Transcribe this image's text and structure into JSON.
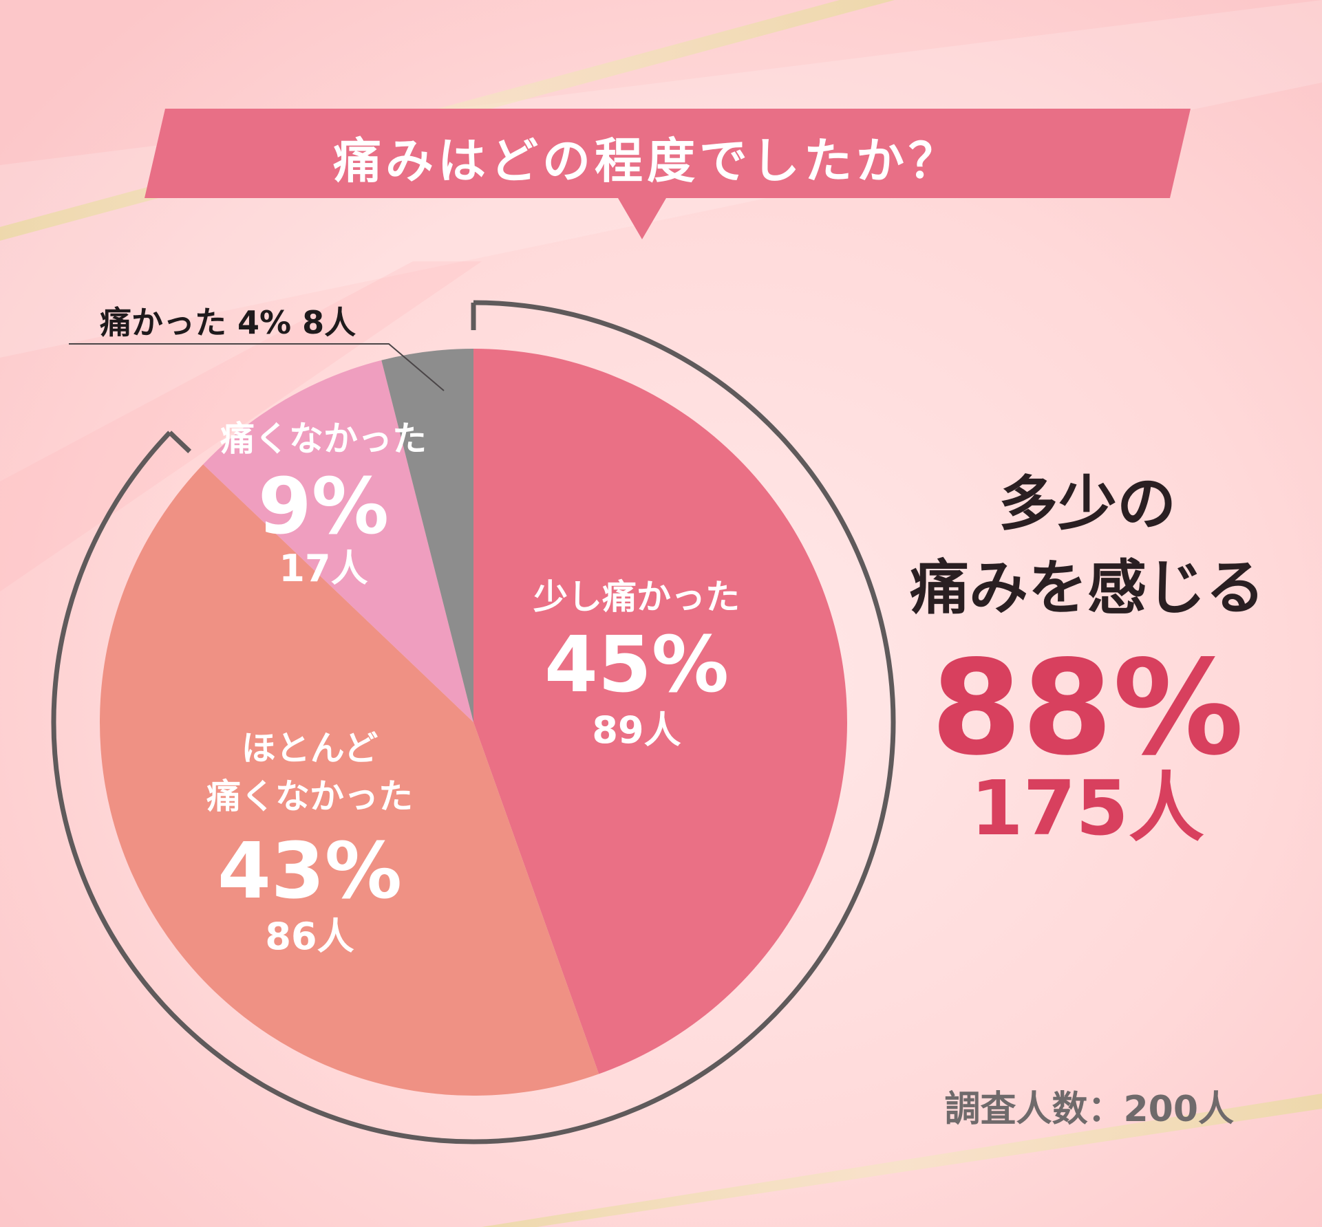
{
  "title": "痛みはどの程度でしたか？",
  "chart_data": {
    "type": "pie",
    "total_respondents": 200,
    "slices": [
      {
        "label": "少し痛かった",
        "percent": 45,
        "count": "89人",
        "color": "#ea7085"
      },
      {
        "label": "ほとんど痛くなかった",
        "label_lines": [
          "ほとんど",
          "痛くなかった"
        ],
        "percent": 43,
        "count": "86人",
        "color": "#ef9184"
      },
      {
        "label": "痛くなかった",
        "percent": 9,
        "count": "17人",
        "color": "#ef9ebf"
      },
      {
        "label": "痛かった",
        "percent": 4,
        "count": "8人",
        "color": "#8d8d8d"
      }
    ],
    "outside_label": "痛かった 4% 8人",
    "highlight": {
      "line1": "多少の",
      "line2": "痛みを感じる",
      "percent_text": "88%",
      "count_text": "175人"
    },
    "footnote": "調査人数：200人"
  },
  "colors": {
    "banner": "#e86f86",
    "accent_text": "#d8405e",
    "bracket": "#5f5a5b",
    "slice_text": "#ffffff"
  }
}
